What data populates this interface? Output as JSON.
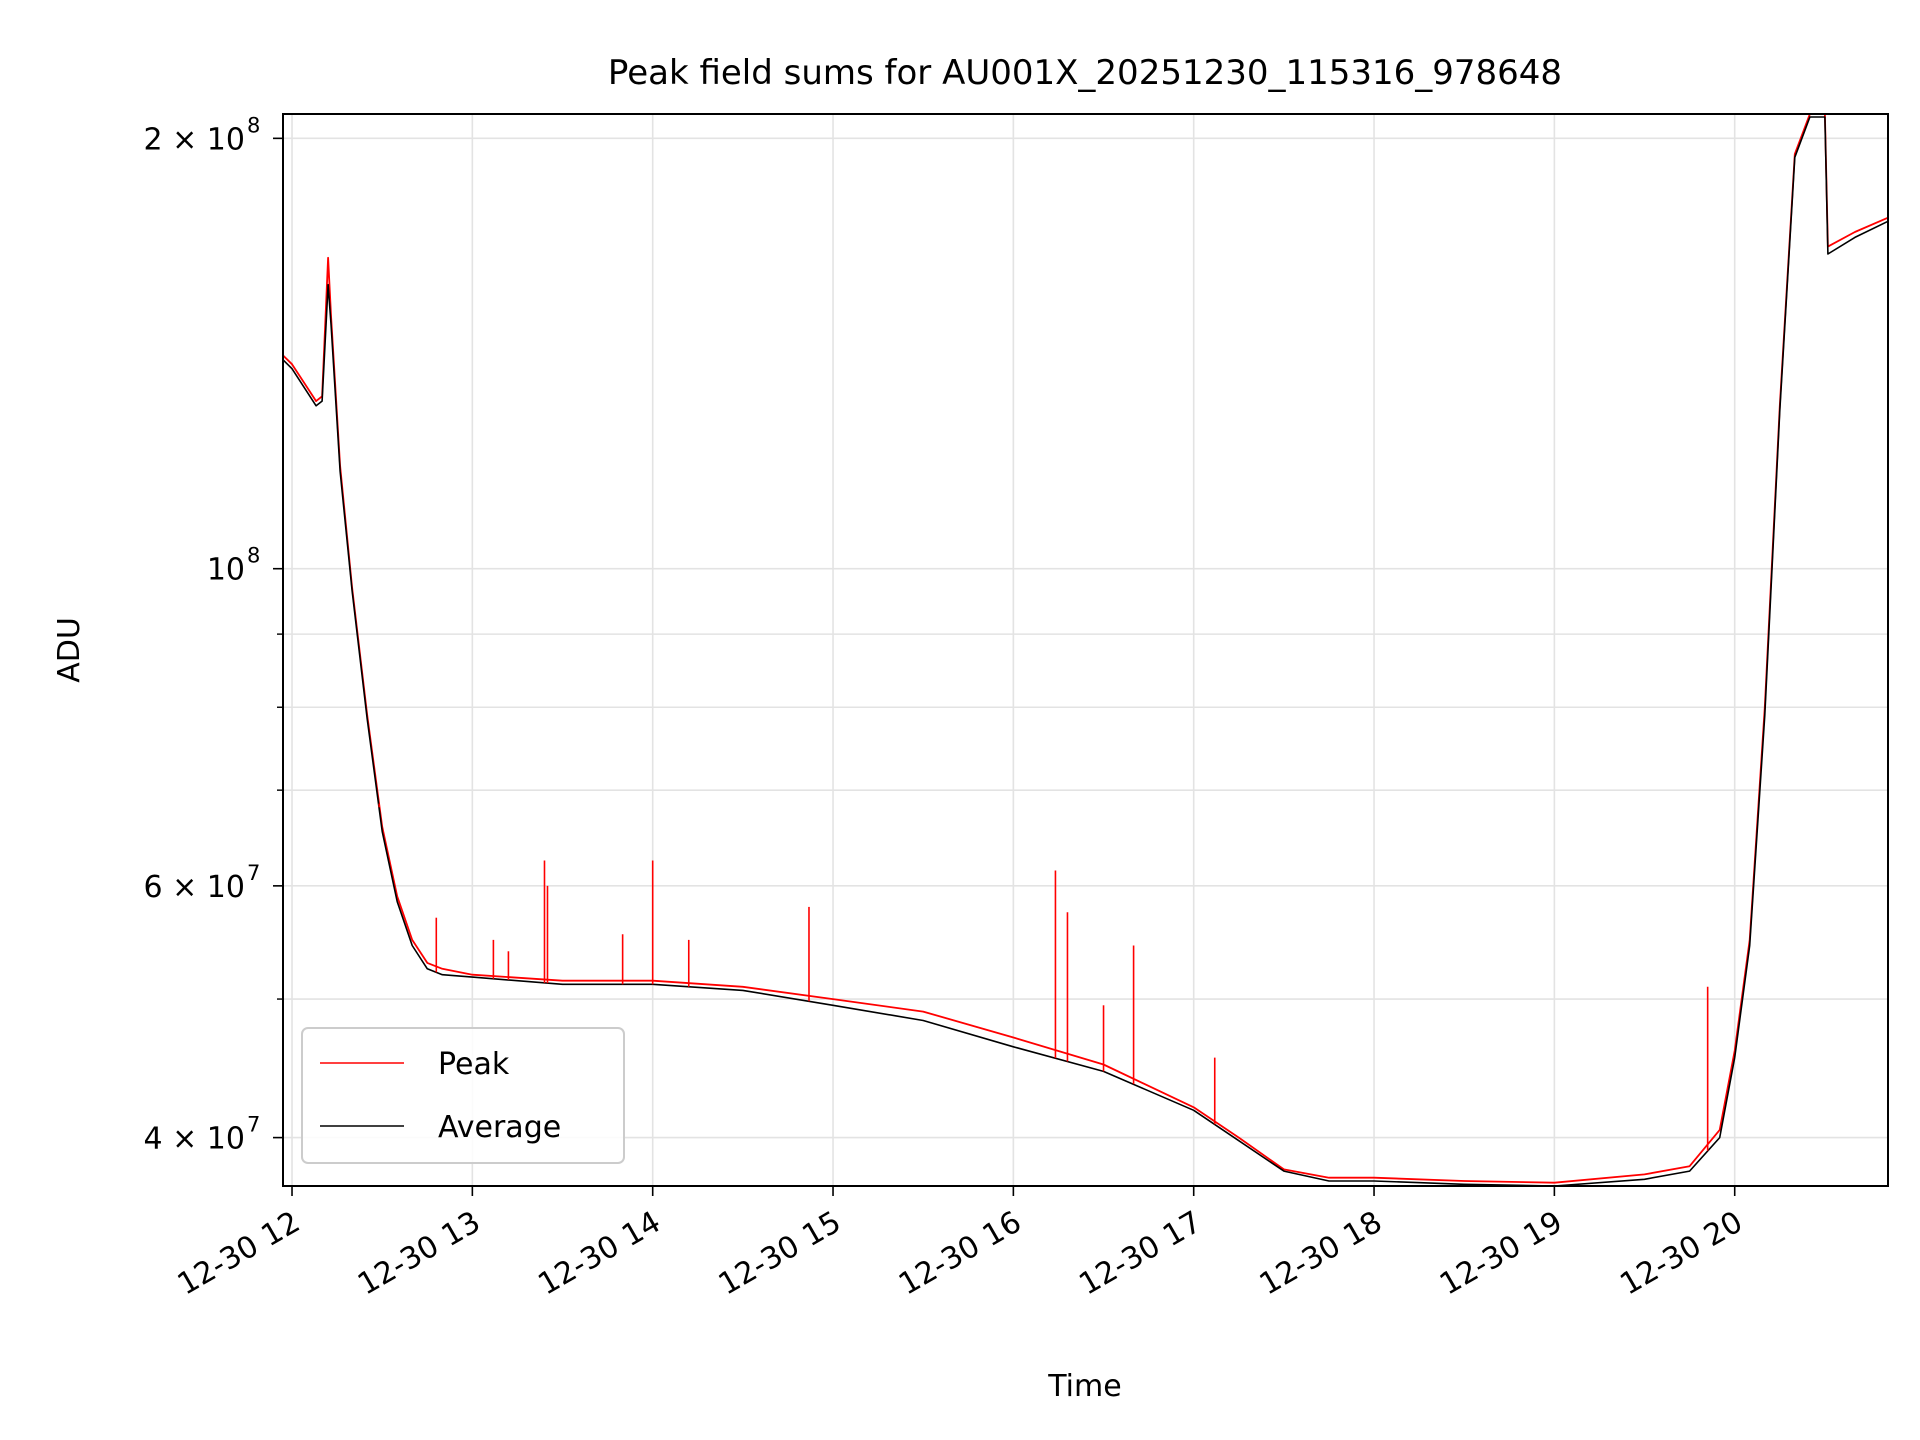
{
  "chart_data": {
    "type": "line",
    "title": "Peak field sums for AU001X_20251230_115316_978648",
    "xlabel": "Time",
    "ylabel": "ADU",
    "y_scale": "log",
    "ylim": [
      37000000,
      208000000
    ],
    "xlim": [
      "2025-12-30 11:57",
      "2025-12-30 20:51"
    ],
    "grid": true,
    "legend_position": "lower-left",
    "x_ticks": [
      {
        "t": "2025-12-30 12:00",
        "label": "12-30 12"
      },
      {
        "t": "2025-12-30 13:00",
        "label": "12-30 13"
      },
      {
        "t": "2025-12-30 14:00",
        "label": "12-30 14"
      },
      {
        "t": "2025-12-30 15:00",
        "label": "12-30 15"
      },
      {
        "t": "2025-12-30 16:00",
        "label": "12-30 16"
      },
      {
        "t": "2025-12-30 17:00",
        "label": "12-30 17"
      },
      {
        "t": "2025-12-30 18:00",
        "label": "12-30 18"
      },
      {
        "t": "2025-12-30 19:00",
        "label": "12-30 19"
      },
      {
        "t": "2025-12-30 20:00",
        "label": "12-30 20"
      }
    ],
    "y_major_ticks": [
      {
        "value": 40000000,
        "base": "4 × 10",
        "exp": "7"
      },
      {
        "value": 60000000,
        "base": "6 × 10",
        "exp": "7"
      },
      {
        "value": 100000000,
        "base": "10",
        "exp": "8"
      },
      {
        "value": 200000000,
        "base": "2 × 10",
        "exp": "8"
      }
    ],
    "y_minor_ticks": [
      50000000,
      70000000,
      80000000,
      90000000
    ],
    "series": [
      {
        "name": "Peak",
        "color": "#ff0000",
        "x": [
          "2025-12-30 11:57",
          "2025-12-30 12:00",
          "2025-12-30 12:08",
          "2025-12-30 12:10",
          "2025-12-30 12:12",
          "2025-12-30 12:13",
          "2025-12-30 12:16",
          "2025-12-30 12:20",
          "2025-12-30 12:25",
          "2025-12-30 12:30",
          "2025-12-30 12:35",
          "2025-12-30 12:40",
          "2025-12-30 12:45",
          "2025-12-30 12:50",
          "2025-12-30 13:00",
          "2025-12-30 13:30",
          "2025-12-30 14:00",
          "2025-12-30 14:30",
          "2025-12-30 15:00",
          "2025-12-30 15:30",
          "2025-12-30 16:00",
          "2025-12-30 16:30",
          "2025-12-30 17:00",
          "2025-12-30 17:15",
          "2025-12-30 17:30",
          "2025-12-30 17:45",
          "2025-12-30 18:00",
          "2025-12-30 18:30",
          "2025-12-30 19:00",
          "2025-12-30 19:30",
          "2025-12-30 19:45",
          "2025-12-30 19:55",
          "2025-12-30 20:00",
          "2025-12-30 20:05",
          "2025-12-30 20:10",
          "2025-12-30 20:15",
          "2025-12-30 20:20",
          "2025-12-30 20:25",
          "2025-12-30 20:30",
          "2025-12-30 20:31",
          "2025-12-30 20:40",
          "2025-12-30 20:51"
        ],
        "values": [
          141000000,
          139000000,
          131000000,
          132000000,
          165000000,
          150000000,
          118000000,
          97000000,
          79000000,
          66000000,
          59000000,
          55000000,
          53000000,
          52500000,
          52000000,
          51500000,
          51500000,
          51000000,
          50000000,
          49000000,
          47000000,
          45000000,
          42000000,
          40000000,
          38000000,
          37500000,
          37500000,
          37300000,
          37200000,
          37700000,
          38200000,
          40500000,
          46000000,
          55000000,
          80000000,
          130000000,
          195000000,
          208000000,
          208000000,
          168000000,
          172000000,
          176000000
        ]
      },
      {
        "name": "Average",
        "color": "#000000",
        "x": [
          "2025-12-30 11:57",
          "2025-12-30 12:00",
          "2025-12-30 12:08",
          "2025-12-30 12:10",
          "2025-12-30 12:12",
          "2025-12-30 12:13",
          "2025-12-30 12:16",
          "2025-12-30 12:20",
          "2025-12-30 12:25",
          "2025-12-30 12:30",
          "2025-12-30 12:35",
          "2025-12-30 12:40",
          "2025-12-30 12:45",
          "2025-12-30 12:50",
          "2025-12-30 13:00",
          "2025-12-30 13:30",
          "2025-12-30 14:00",
          "2025-12-30 14:30",
          "2025-12-30 15:00",
          "2025-12-30 15:30",
          "2025-12-30 16:00",
          "2025-12-30 16:30",
          "2025-12-30 17:00",
          "2025-12-30 17:15",
          "2025-12-30 17:30",
          "2025-12-30 17:45",
          "2025-12-30 18:00",
          "2025-12-30 18:30",
          "2025-12-30 19:00",
          "2025-12-30 19:30",
          "2025-12-30 19:45",
          "2025-12-30 19:55",
          "2025-12-30 20:00",
          "2025-12-30 20:05",
          "2025-12-30 20:10",
          "2025-12-30 20:15",
          "2025-12-30 20:20",
          "2025-12-30 20:25",
          "2025-12-30 20:30",
          "2025-12-30 20:31",
          "2025-12-30 20:40",
          "2025-12-30 20:51"
        ],
        "values": [
          140000000,
          138000000,
          130000000,
          131000000,
          158000000,
          148000000,
          117000000,
          96500000,
          78500000,
          65500000,
          58500000,
          54500000,
          52500000,
          52000000,
          51800000,
          51200000,
          51200000,
          50700000,
          49500000,
          48300000,
          46300000,
          44500000,
          41800000,
          39800000,
          37900000,
          37300000,
          37300000,
          37100000,
          37000000,
          37400000,
          37900000,
          40000000,
          45500000,
          54500000,
          79000000,
          129000000,
          194000000,
          207000000,
          207000000,
          166000000,
          170500000,
          175000000
        ]
      }
    ],
    "peak_spikes": [
      {
        "t": "2025-12-30 12:29",
        "value": 68500000
      },
      {
        "t": "2025-12-30 12:48",
        "value": 57000000
      },
      {
        "t": "2025-12-30 13:07",
        "value": 55000000
      },
      {
        "t": "2025-12-30 13:12",
        "value": 54000000
      },
      {
        "t": "2025-12-30 13:24",
        "value": 62500000
      },
      {
        "t": "2025-12-30 13:25",
        "value": 60000000
      },
      {
        "t": "2025-12-30 13:50",
        "value": 55500000
      },
      {
        "t": "2025-12-30 14:00",
        "value": 62500000
      },
      {
        "t": "2025-12-30 14:12",
        "value": 55000000
      },
      {
        "t": "2025-12-30 14:52",
        "value": 58000000
      },
      {
        "t": "2025-12-30 16:14",
        "value": 61500000
      },
      {
        "t": "2025-12-30 16:18",
        "value": 57500000
      },
      {
        "t": "2025-12-30 16:30",
        "value": 49500000
      },
      {
        "t": "2025-12-30 16:40",
        "value": 54500000
      },
      {
        "t": "2025-12-30 17:07",
        "value": 45500000
      },
      {
        "t": "2025-12-30 19:51",
        "value": 51000000
      }
    ]
  }
}
